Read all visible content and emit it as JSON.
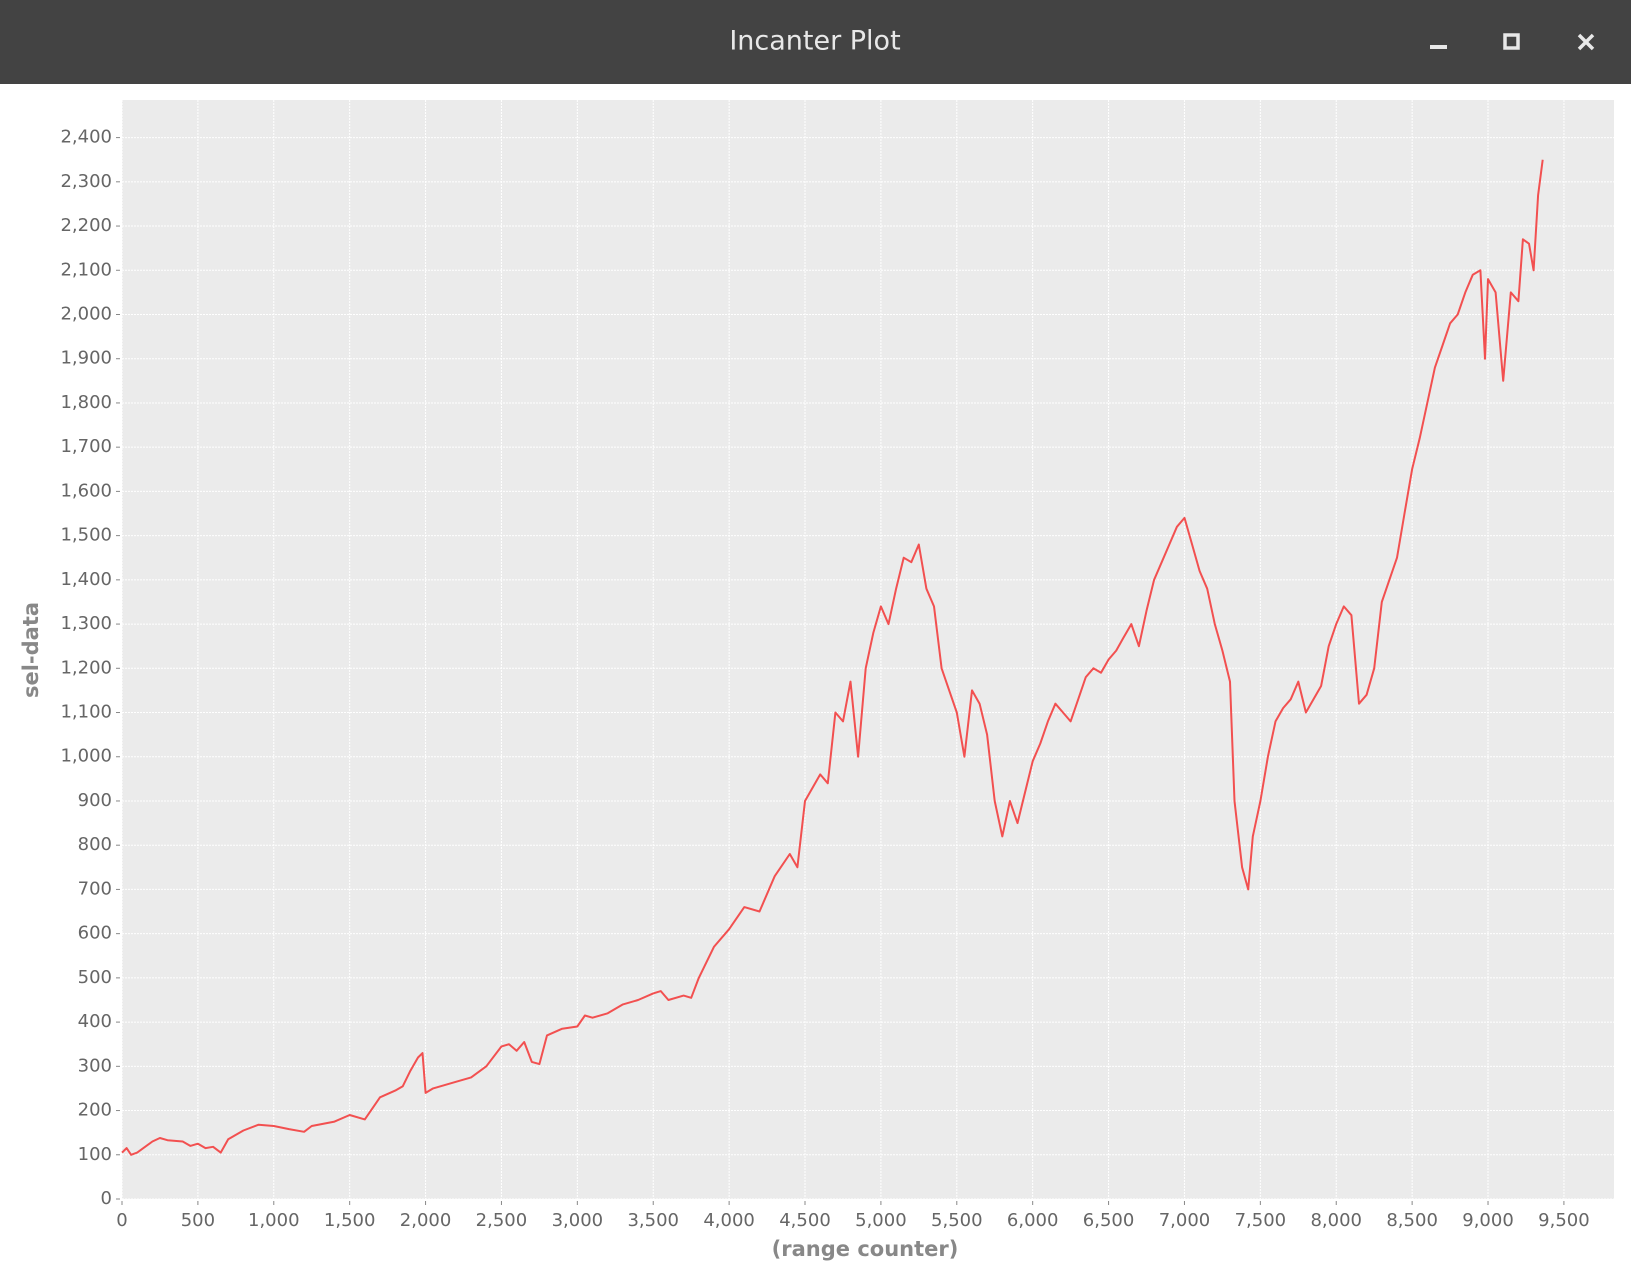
{
  "window": {
    "title": "Incanter Plot"
  },
  "chart_data": {
    "type": "line",
    "x_label": "(range counter)",
    "y_label": "sel-data",
    "x": [
      0,
      30,
      60,
      100,
      200,
      250,
      300,
      400,
      450,
      500,
      550,
      600,
      650,
      700,
      800,
      900,
      1000,
      1100,
      1200,
      1250,
      1400,
      1500,
      1600,
      1700,
      1800,
      1850,
      1900,
      1950,
      1980,
      2000,
      2050,
      2200,
      2300,
      2400,
      2500,
      2550,
      2600,
      2650,
      2700,
      2750,
      2800,
      2900,
      3000,
      3050,
      3100,
      3200,
      3300,
      3400,
      3500,
      3550,
      3600,
      3700,
      3750,
      3800,
      3900,
      4000,
      4100,
      4200,
      4300,
      4400,
      4450,
      4500,
      4600,
      4650,
      4700,
      4750,
      4800,
      4850,
      4900,
      4950,
      5000,
      5050,
      5100,
      5150,
      5200,
      5250,
      5300,
      5350,
      5400,
      5450,
      5500,
      5550,
      5600,
      5650,
      5700,
      5750,
      5800,
      5850,
      5900,
      5950,
      6000,
      6050,
      6100,
      6150,
      6200,
      6250,
      6300,
      6350,
      6400,
      6450,
      6500,
      6550,
      6600,
      6650,
      6700,
      6750,
      6800,
      6850,
      6900,
      6950,
      7000,
      7050,
      7100,
      7150,
      7200,
      7250,
      7300,
      7330,
      7380,
      7420,
      7450,
      7500,
      7550,
      7600,
      7650,
      7700,
      7750,
      7800,
      7850,
      7900,
      7950,
      8000,
      8050,
      8100,
      8150,
      8200,
      8250,
      8300,
      8350,
      8400,
      8450,
      8500,
      8550,
      8600,
      8650,
      8700,
      8750,
      8800,
      8850,
      8900,
      8950,
      8980,
      9000,
      9050,
      9100,
      9150,
      9200,
      9230,
      9270,
      9300,
      9330,
      9360
    ],
    "series": [
      {
        "name": "sel-data",
        "color": "#f25050",
        "values": [
          105,
          115,
          100,
          105,
          130,
          138,
          133,
          130,
          120,
          125,
          115,
          118,
          105,
          135,
          155,
          168,
          165,
          158,
          152,
          165,
          175,
          190,
          180,
          230,
          245,
          255,
          290,
          320,
          330,
          240,
          250,
          265,
          275,
          300,
          345,
          350,
          335,
          355,
          310,
          305,
          370,
          385,
          390,
          415,
          410,
          420,
          440,
          450,
          465,
          470,
          450,
          460,
          455,
          500,
          570,
          610,
          660,
          650,
          730,
          780,
          750,
          900,
          960,
          940,
          1100,
          1080,
          1170,
          1000,
          1200,
          1280,
          1340,
          1300,
          1380,
          1450,
          1440,
          1480,
          1380,
          1340,
          1200,
          1150,
          1100,
          1000,
          1150,
          1120,
          1050,
          900,
          820,
          900,
          850,
          920,
          990,
          1030,
          1080,
          1120,
          1100,
          1080,
          1130,
          1180,
          1200,
          1190,
          1220,
          1240,
          1270,
          1300,
          1250,
          1330,
          1400,
          1440,
          1480,
          1520,
          1540,
          1480,
          1420,
          1380,
          1300,
          1240,
          1170,
          900,
          750,
          700,
          820,
          900,
          1000,
          1080,
          1110,
          1130,
          1170,
          1100,
          1130,
          1160,
          1250,
          1300,
          1340,
          1320,
          1120,
          1140,
          1200,
          1350,
          1400,
          1450,
          1550,
          1650,
          1720,
          1800,
          1880,
          1930,
          1980,
          2000,
          2050,
          2090,
          2100,
          1900,
          2080,
          2050,
          1850,
          2050,
          2030,
          2170,
          2160,
          2100,
          2270,
          2350
        ]
      }
    ],
    "xlim": [
      0,
      9830
    ],
    "ylim": [
      0,
      2485
    ],
    "grid": true,
    "xticks": [
      {
        "value": 0,
        "label": "0"
      },
      {
        "value": 500,
        "label": "500"
      },
      {
        "value": 1000,
        "label": "1,000"
      },
      {
        "value": 1500,
        "label": "1,500"
      },
      {
        "value": 2000,
        "label": "2,000"
      },
      {
        "value": 2500,
        "label": "2,500"
      },
      {
        "value": 3000,
        "label": "3,000"
      },
      {
        "value": 3500,
        "label": "3,500"
      },
      {
        "value": 4000,
        "label": "4,000"
      },
      {
        "value": 4500,
        "label": "4,500"
      },
      {
        "value": 5000,
        "label": "5,000"
      },
      {
        "value": 5500,
        "label": "5,500"
      },
      {
        "value": 6000,
        "label": "6,000"
      },
      {
        "value": 6500,
        "label": "6,500"
      },
      {
        "value": 7000,
        "label": "7,000"
      },
      {
        "value": 7500,
        "label": "7,500"
      },
      {
        "value": 8000,
        "label": "8,000"
      },
      {
        "value": 8500,
        "label": "8,500"
      },
      {
        "value": 9000,
        "label": "9,000"
      },
      {
        "value": 9500,
        "label": "9,500"
      }
    ],
    "yticks": [
      {
        "value": 0,
        "label": "0"
      },
      {
        "value": 100,
        "label": "100"
      },
      {
        "value": 200,
        "label": "200"
      },
      {
        "value": 300,
        "label": "300"
      },
      {
        "value": 400,
        "label": "400"
      },
      {
        "value": 500,
        "label": "500"
      },
      {
        "value": 600,
        "label": "600"
      },
      {
        "value": 700,
        "label": "700"
      },
      {
        "value": 800,
        "label": "800"
      },
      {
        "value": 900,
        "label": "900"
      },
      {
        "value": 1000,
        "label": "1,000"
      },
      {
        "value": 1100,
        "label": "1,100"
      },
      {
        "value": 1200,
        "label": "1,200"
      },
      {
        "value": 1300,
        "label": "1,300"
      },
      {
        "value": 1400,
        "label": "1,400"
      },
      {
        "value": 1500,
        "label": "1,500"
      },
      {
        "value": 1600,
        "label": "1,600"
      },
      {
        "value": 1700,
        "label": "1,700"
      },
      {
        "value": 1800,
        "label": "1,800"
      },
      {
        "value": 1900,
        "label": "1,900"
      },
      {
        "value": 2000,
        "label": "2,000"
      },
      {
        "value": 2100,
        "label": "2,100"
      },
      {
        "value": 2200,
        "label": "2,200"
      },
      {
        "value": 2300,
        "label": "2,300"
      },
      {
        "value": 2400,
        "label": "2,400"
      }
    ]
  }
}
